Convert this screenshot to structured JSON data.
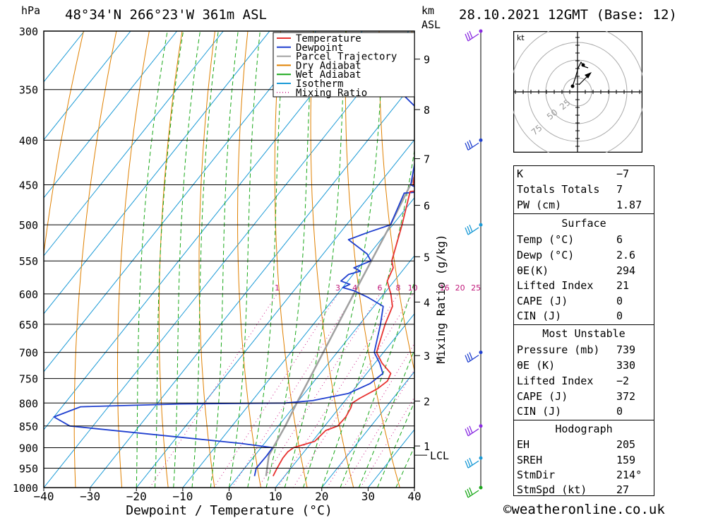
{
  "header": {
    "hpa_label": "hPa",
    "location": "48°34'N  266°23'W  361m  ASL",
    "km_label": "km",
    "asl_label": "ASL",
    "datetime": "28.10.2021  12GMT  (Base: 12)"
  },
  "chart_data": {
    "type": "line",
    "title": "",
    "xlabel": "Dewpoint / Temperature (°C)",
    "ylabel_left": "hPa",
    "ylabel_right": "Mixing Ratio (g/kg)",
    "xlim": [
      -40,
      40
    ],
    "ylim": [
      1000,
      300
    ],
    "y_scale": "log-pressure",
    "skew": "skew-T",
    "x_ticks": [
      "−40",
      "−30",
      "−20",
      "−10",
      "0",
      "10",
      "20",
      "30",
      "40"
    ],
    "pressure_ticks": [
      300,
      350,
      400,
      450,
      500,
      550,
      600,
      650,
      700,
      750,
      800,
      850,
      900,
      950,
      1000
    ],
    "km_ticks": [
      {
        "label": "9",
        "p": 323
      },
      {
        "label": "8",
        "p": 369
      },
      {
        "label": "7",
        "p": 420
      },
      {
        "label": "6",
        "p": 475
      },
      {
        "label": "5",
        "p": 544
      },
      {
        "label": "4",
        "p": 613
      },
      {
        "label": "3",
        "p": 706
      },
      {
        "label": "2",
        "p": 796
      },
      {
        "label": "1",
        "p": 896
      }
    ],
    "lcl": {
      "label": "LCL",
      "p": 918
    },
    "mixing_ratio_labels": [
      "1",
      "3",
      "4",
      "6",
      "8",
      "10",
      "16",
      "20",
      "25"
    ],
    "legend": {
      "placement": "top-right",
      "entries": [
        {
          "name": "Temperature",
          "color": "#e8312f",
          "style": "solid"
        },
        {
          "name": "Dewpoint",
          "color": "#1f3fcf",
          "style": "solid"
        },
        {
          "name": "Parcel Trajectory",
          "color": "#a0a0a0",
          "style": "solid"
        },
        {
          "name": "Dry Adiabat",
          "color": "#e08000",
          "style": "solid"
        },
        {
          "name": "Wet Adiabat",
          "color": "#1aa81a",
          "style": "solid"
        },
        {
          "name": "Isotherm",
          "color": "#1a9ad6",
          "style": "solid"
        },
        {
          "name": "Mixing Ratio",
          "color": "#d0208a",
          "style": "dotted"
        }
      ]
    },
    "series": [
      {
        "name": "Temperature",
        "color": "#e8312f",
        "points": [
          [
            970,
            7.5
          ],
          [
            950,
            7.0
          ],
          [
            925,
            6.5
          ],
          [
            910,
            6.5
          ],
          [
            900,
            7.0
          ],
          [
            885,
            10.5
          ],
          [
            860,
            11.0
          ],
          [
            850,
            12.8
          ],
          [
            830,
            13.0
          ],
          [
            810,
            12.5
          ],
          [
            800,
            12.0
          ],
          [
            790,
            12.8
          ],
          [
            770,
            15.0
          ],
          [
            755,
            15.8
          ],
          [
            740,
            15.2
          ],
          [
            720,
            11.5
          ],
          [
            700,
            8.5
          ],
          [
            650,
            5.5
          ],
          [
            620,
            4.0
          ],
          [
            600,
            1.5
          ],
          [
            590,
            0.0
          ],
          [
            580,
            -1.5
          ],
          [
            570,
            -2.0
          ],
          [
            560,
            -2.5
          ],
          [
            550,
            -4.0
          ],
          [
            500,
            -8.0
          ],
          [
            458,
            -12.0
          ],
          [
            455,
            -7.0
          ],
          [
            450,
            -12.5
          ],
          [
            400,
            -19.0
          ],
          [
            350,
            -27.0
          ],
          [
            320,
            -34.0
          ],
          [
            300,
            -38.0
          ]
        ]
      },
      {
        "name": "Dewpoint",
        "color": "#1f3fcf",
        "points": [
          [
            970,
            3.5
          ],
          [
            950,
            2.5
          ],
          [
            920,
            2.6
          ],
          [
            900,
            2.5
          ],
          [
            890,
            -5.0
          ],
          [
            850,
            -45.0
          ],
          [
            830,
            -50.0
          ],
          [
            808,
            -46.0
          ],
          [
            802,
            -25.0
          ],
          [
            800,
            -2.5
          ],
          [
            795,
            3.0
          ],
          [
            780,
            9.5
          ],
          [
            760,
            12.5
          ],
          [
            740,
            13.5
          ],
          [
            720,
            11.0
          ],
          [
            700,
            8.0
          ],
          [
            650,
            4.5
          ],
          [
            620,
            2.0
          ],
          [
            605,
            -3.0
          ],
          [
            595,
            -7.0
          ],
          [
            590,
            -10.0
          ],
          [
            585,
            -9.0
          ],
          [
            580,
            -11.5
          ],
          [
            570,
            -11.0
          ],
          [
            565,
            -9.0
          ],
          [
            560,
            -11.0
          ],
          [
            550,
            -8.5
          ],
          [
            540,
            -10.5
          ],
          [
            520,
            -17.0
          ],
          [
            510,
            -14.0
          ],
          [
            500,
            -10.5
          ],
          [
            460,
            -13.0
          ],
          [
            458,
            -9.0
          ],
          [
            450,
            -13.0
          ],
          [
            400,
            -19.0
          ],
          [
            370,
            -24.0
          ],
          [
            330,
            -41.0
          ],
          [
            310,
            -38.0
          ],
          [
            300,
            -37.5
          ]
        ]
      },
      {
        "name": "Parcel Trajectory",
        "color": "#a0a0a0",
        "points": [
          [
            970,
            6.0
          ],
          [
            918,
            3.0
          ],
          [
            850,
            1.5
          ],
          [
            800,
            0.0
          ],
          [
            700,
            -3.0
          ],
          [
            600,
            -6.5
          ],
          [
            500,
            -10.5
          ],
          [
            400,
            -16.0
          ],
          [
            300,
            -23.5
          ]
        ]
      }
    ],
    "wind_barbs": [
      {
        "p": 300,
        "color": "#8a2be2"
      },
      {
        "p": 400,
        "color": "#1f3fcf"
      },
      {
        "p": 500,
        "color": "#1a9ad6"
      },
      {
        "p": 700,
        "color": "#1f3fcf"
      },
      {
        "p": 850,
        "color": "#8a2be2"
      },
      {
        "p": 925,
        "color": "#1a9ad6"
      },
      {
        "p": 1000,
        "color": "#1aa81a"
      }
    ]
  },
  "hodograph": {
    "unit": "kt",
    "ring_labels": [
      "25",
      "50",
      "75"
    ]
  },
  "indices": {
    "k_label": "K",
    "k_value": "−7",
    "tt_label": "Totals Totals",
    "tt_value": "7",
    "pw_label": "PW (cm)",
    "pw_value": "1.87",
    "surface_title": "Surface",
    "temp_label": "Temp (°C)",
    "temp_value": "6",
    "dewp_label": "Dewp (°C)",
    "dewp_value": "2.6",
    "theta_label": "θE(K)",
    "theta_value": "294",
    "li_label": "Lifted Index",
    "li_value": "21",
    "cape_label": "CAPE (J)",
    "cape_value": "0",
    "cin_label": "CIN (J)",
    "cin_value": "0",
    "mu_title": "Most Unstable",
    "mu_pressure_label": "Pressure (mb)",
    "mu_pressure_value": "739",
    "mu_theta_label": "θE (K)",
    "mu_theta_value": "330",
    "mu_li_label": "Lifted Index",
    "mu_li_value": "−2",
    "mu_cape_label": "CAPE (J)",
    "mu_cape_value": "372",
    "mu_cin_label": "CIN (J)",
    "mu_cin_value": "0",
    "hodo_title": "Hodograph",
    "eh_label": "EH",
    "eh_value": "205",
    "sreh_label": "SREH",
    "sreh_value": "159",
    "stmdir_label": "StmDir",
    "stmdir_value": "214°",
    "stmspd_label": "StmSpd (kt)",
    "stmspd_value": "27"
  },
  "footer": {
    "copyright": "©weatheronline.co.uk"
  }
}
